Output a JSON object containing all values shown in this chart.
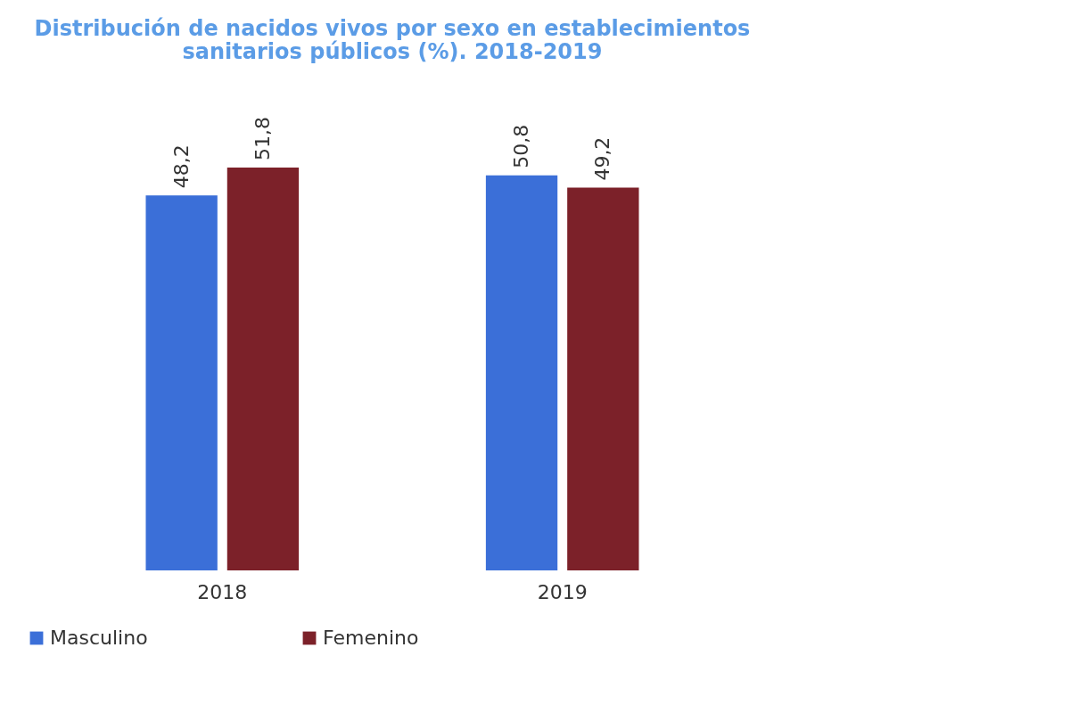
{
  "chart_data": {
    "type": "bar",
    "title": "Distribución de nacidos vivos por sexo en establecimientos sanitarios públicos (%). 2018-2019",
    "categories": [
      "2018",
      "2019"
    ],
    "series": [
      {
        "name": "Masculino",
        "color": "#3b6fd8",
        "values": [
          48.2,
          50.8
        ],
        "value_labels": [
          "48,2",
          "50,8"
        ]
      },
      {
        "name": "Femenino",
        "color": "#7c2129",
        "values": [
          51.8,
          49.2
        ],
        "value_labels": [
          "51,8",
          "49,2"
        ]
      }
    ],
    "legend": "bottom"
  }
}
